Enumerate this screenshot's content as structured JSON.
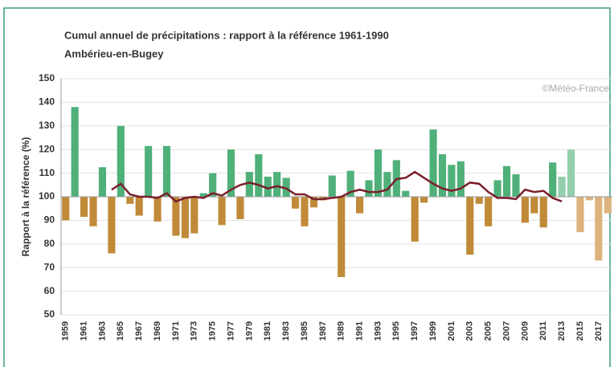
{
  "chart_data": {
    "type": "bar",
    "title": "Cumul annuel de précipitations : rapport à la référence 1961-1990",
    "subtitle": "Ambérieu-en-Bugey",
    "y_label": "Rapport à la référence (%)",
    "annotation": "©Météo-France",
    "categories": [
      "1959",
      null,
      "1961",
      null,
      "1963",
      null,
      "1965",
      null,
      "1967",
      null,
      "1969",
      null,
      "1971",
      null,
      "1973",
      null,
      "1975",
      null,
      "1977",
      null,
      "1979",
      null,
      "1981",
      null,
      "1983",
      null,
      "1985",
      null,
      "1987",
      null,
      "1989",
      null,
      "1991",
      null,
      "1993",
      null,
      "1995",
      null,
      "1997",
      null,
      "1999",
      null,
      "2001",
      null,
      "2003",
      null,
      "2005",
      null,
      "2007",
      null,
      "2009",
      null,
      "2011",
      null,
      "2013",
      null,
      "2015",
      null,
      "2017",
      null
    ],
    "values": [
      90,
      138,
      91.5,
      87.5,
      112.5,
      76,
      130,
      97,
      92,
      121.5,
      89.5,
      121.5,
      83.5,
      82.5,
      84.5,
      101.5,
      110,
      88,
      120,
      90.5,
      110.5,
      118,
      108.5,
      110.5,
      108,
      95,
      87.5,
      95.5,
      98.5,
      109,
      66,
      111,
      93,
      107,
      120,
      110.5,
      115.5,
      102.5,
      81,
      97.5,
      128.5,
      118,
      113.5,
      115,
      75.5,
      97,
      87.5,
      107,
      113,
      109.5,
      89,
      93,
      87,
      114.5,
      108.5,
      120,
      85,
      98.5,
      73,
      93
    ],
    "colors": [
      "#c08a38",
      "#4fb07a",
      "#c08a38",
      "#c08a38",
      "#4fb07a",
      "#c08a38",
      "#4fb07a",
      "#c08a38",
      "#c08a38",
      "#4fb07a",
      "#c08a38",
      "#4fb07a",
      "#c08a38",
      "#c08a38",
      "#c08a38",
      "#4fb07a",
      "#4fb07a",
      "#c08a38",
      "#4fb07a",
      "#c08a38",
      "#4fb07a",
      "#4fb07a",
      "#4fb07a",
      "#4fb07a",
      "#4fb07a",
      "#c08a38",
      "#c08a38",
      "#c08a38",
      "#c08a38",
      "#4fb07a",
      "#c08a38",
      "#4fb07a",
      "#c08a38",
      "#4fb07a",
      "#4fb07a",
      "#4fb07a",
      "#4fb07a",
      "#4fb07a",
      "#c08a38",
      "#c08a38",
      "#4fb07a",
      "#4fb07a",
      "#4fb07a",
      "#4fb07a",
      "#c08a38",
      "#c08a38",
      "#c08a38",
      "#4fb07a",
      "#4fb07a",
      "#4fb07a",
      "#c08a38",
      "#c08a38",
      "#c08a38",
      "#4fb07a",
      "#93cfac",
      "#93cfac",
      "#dcb37c",
      "#dcb37c",
      "#dcb37c",
      "#dcb37c"
    ],
    "baseline": 100,
    "line": {
      "color": "#7a1f2b",
      "values": [
        null,
        null,
        null,
        null,
        null,
        103,
        105.5,
        101,
        100,
        100,
        99.5,
        101.5,
        98,
        99.5,
        100,
        99.5,
        101.5,
        100.5,
        103,
        105,
        106,
        105,
        103.5,
        104.5,
        103.5,
        101,
        101,
        99,
        99,
        99.5,
        100,
        102,
        103,
        102,
        102,
        103,
        107.5,
        108,
        110.5,
        108,
        105.5,
        103.5,
        102.5,
        103.5,
        106,
        105.5,
        102,
        99.5,
        99.5,
        99,
        103,
        102,
        102.5,
        99.5,
        98,
        null,
        null,
        null,
        null,
        null
      ]
    },
    "ylim": [
      50,
      150
    ],
    "yticks": [
      50,
      60,
      70,
      80,
      90,
      100,
      110,
      120,
      130,
      140,
      150
    ],
    "grid": true
  }
}
